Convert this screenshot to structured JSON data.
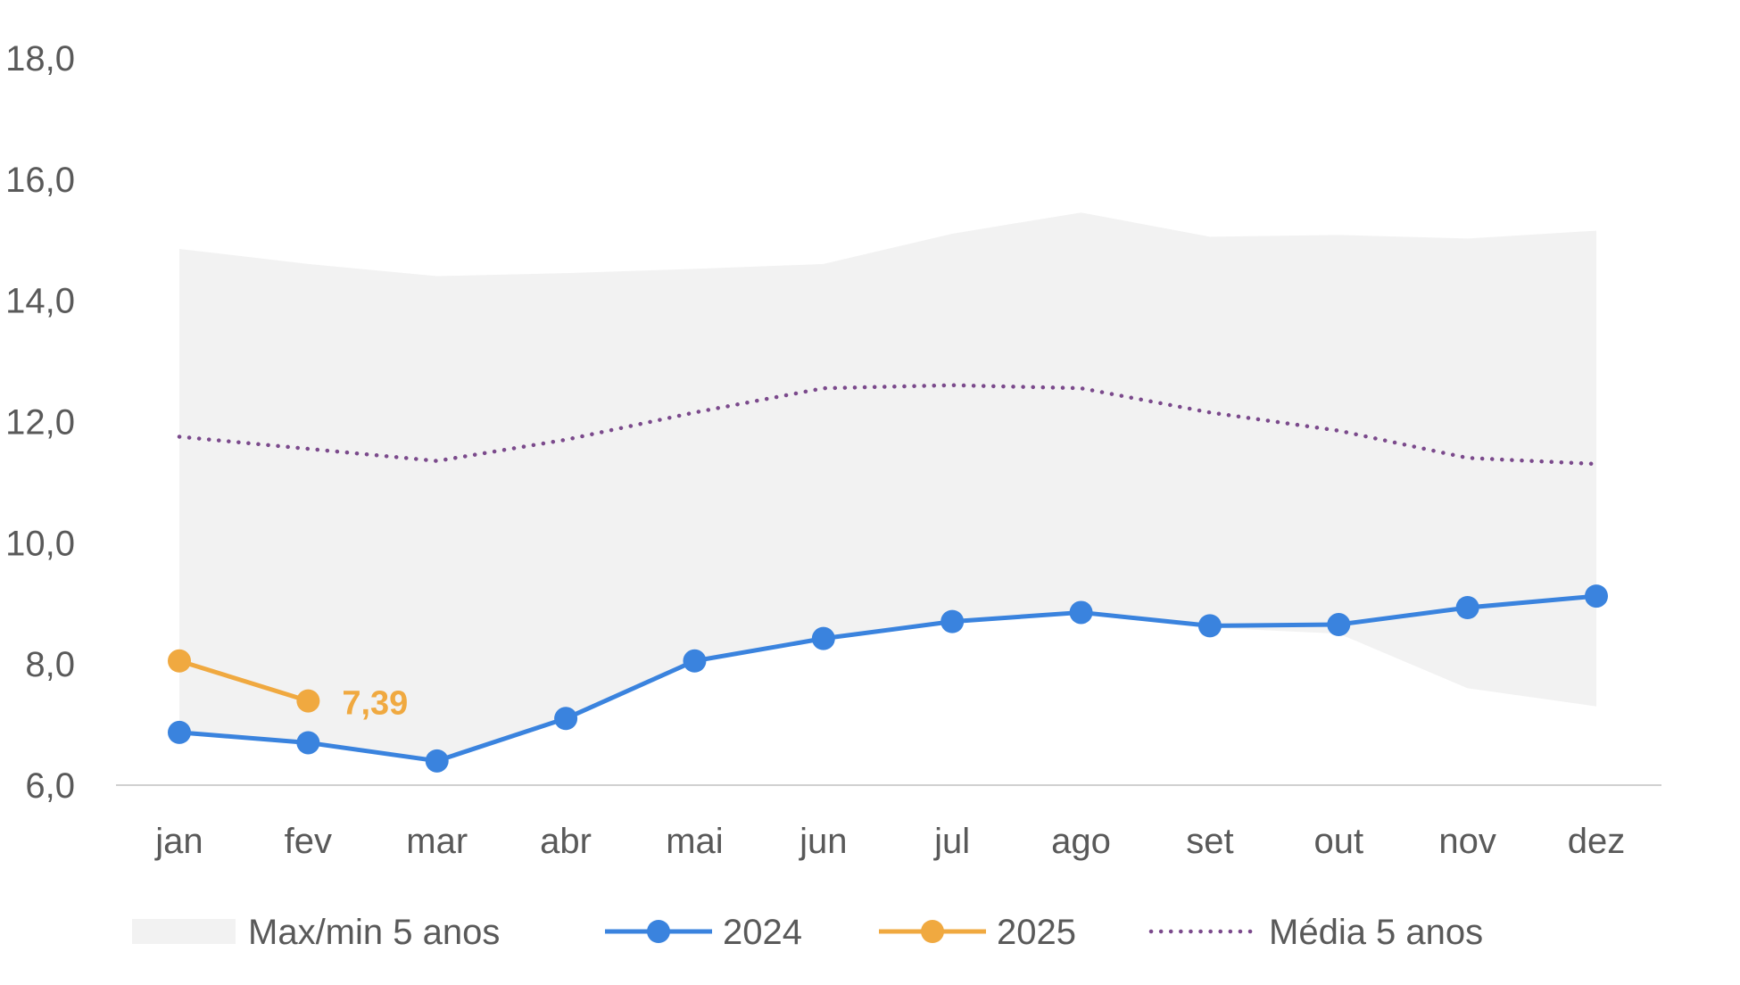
{
  "chart_data": {
    "type": "line",
    "categories": [
      "jan",
      "fev",
      "mar",
      "abr",
      "mai",
      "jun",
      "jul",
      "ago",
      "set",
      "out",
      "nov",
      "dez"
    ],
    "ylim": [
      6.0,
      18.0
    ],
    "yticks": [
      6.0,
      8.0,
      10.0,
      12.0,
      14.0,
      16.0,
      18.0
    ],
    "ytick_labels": [
      "6,0",
      "8,0",
      "10,0",
      "12,0",
      "14,0",
      "16,0",
      "18,0"
    ],
    "grid": false,
    "legend_position": "bottom",
    "band": {
      "name": "Max/min 5 anos",
      "color": "#f2f2f2",
      "max": [
        14.85,
        14.6,
        14.4,
        14.45,
        14.52,
        14.6,
        15.1,
        15.45,
        15.05,
        15.08,
        15.02,
        15.15
      ],
      "min": [
        6.85,
        6.7,
        6.42,
        7.08,
        8.05,
        8.42,
        8.7,
        8.85,
        8.6,
        8.5,
        7.6,
        7.3
      ]
    },
    "series": [
      {
        "name": "2024",
        "color": "#3a83de",
        "style": "solid-marker",
        "values": [
          6.87,
          6.7,
          6.4,
          7.1,
          8.05,
          8.42,
          8.7,
          8.85,
          8.63,
          8.65,
          8.93,
          9.12
        ]
      },
      {
        "name": "2025",
        "color": "#f0a940",
        "style": "solid-marker",
        "values": [
          8.05,
          7.39,
          null,
          null,
          null,
          null,
          null,
          null,
          null,
          null,
          null,
          null
        ],
        "data_label": {
          "index": 1,
          "text": "7,39"
        }
      },
      {
        "name": "Média 5 anos",
        "color": "#7b4a8c",
        "style": "dotted",
        "values": [
          11.75,
          11.55,
          11.35,
          11.7,
          12.15,
          12.55,
          12.6,
          12.55,
          12.15,
          11.85,
          11.4,
          11.3
        ]
      }
    ]
  }
}
